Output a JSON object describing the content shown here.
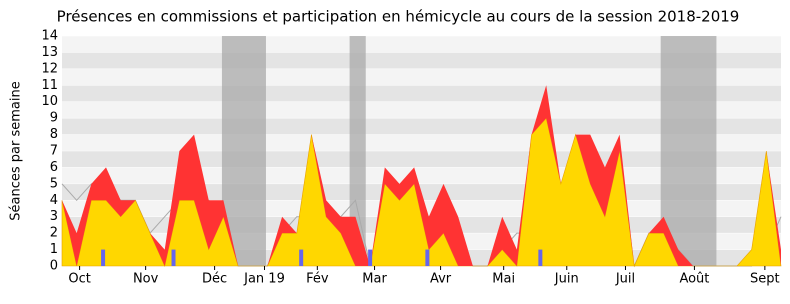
{
  "chart_data": {
    "type": "stacked-area",
    "title": "Présences en commissions et participation en hémicycle au cours de la session 2018-2019",
    "y_label": "Séances par semaine",
    "x": [
      0,
      1,
      2,
      3,
      4,
      5,
      6,
      7,
      8,
      9,
      10,
      11,
      12,
      13,
      14,
      15,
      16,
      17,
      18,
      19,
      20,
      21,
      22,
      23,
      24,
      25,
      26,
      27,
      28,
      29,
      30,
      31,
      32,
      33,
      34,
      35,
      36,
      37,
      38,
      39,
      40,
      41,
      42,
      43,
      44,
      45,
      46,
      47,
      48,
      49
    ],
    "xlim": [
      0,
      49
    ],
    "xticks": [
      {
        "value": 1.2,
        "label": "Oct"
      },
      {
        "value": 5.7,
        "label": "Nov"
      },
      {
        "value": 10.4,
        "label": "Déc"
      },
      {
        "value": 13.8,
        "label": "Jan 19"
      },
      {
        "value": 17.4,
        "label": "Fév"
      },
      {
        "value": 21.3,
        "label": "Mar"
      },
      {
        "value": 25.8,
        "label": "Avr"
      },
      {
        "value": 30.1,
        "label": "Mai"
      },
      {
        "value": 34.4,
        "label": "Juin"
      },
      {
        "value": 38.4,
        "label": "Juil"
      },
      {
        "value": 43.1,
        "label": "Août"
      },
      {
        "value": 47.9,
        "label": "Sept"
      }
    ],
    "ylim": [
      0,
      14
    ],
    "yticks": [
      0,
      1,
      2,
      3,
      4,
      5,
      6,
      7,
      8,
      9,
      10,
      11,
      12,
      13,
      14
    ],
    "grid": true,
    "shaded_ranges": [
      [
        10.9,
        13.9
      ],
      [
        19.6,
        20.7
      ],
      [
        40.8,
        44.6
      ]
    ],
    "shade_color": "#aaaaaa",
    "series": [
      {
        "color": "#ffd700",
        "values": [
          4,
          0,
          4,
          4,
          3,
          4,
          2,
          0,
          4,
          4,
          1,
          3,
          0,
          0,
          0,
          2,
          2,
          8,
          3,
          2,
          0,
          0,
          5,
          4,
          5,
          1,
          2,
          0,
          0,
          0,
          1,
          0,
          8,
          9,
          5,
          8,
          5,
          3,
          7,
          0,
          2,
          2,
          0,
          0,
          0,
          0,
          0,
          1,
          7,
          0
        ]
      },
      {
        "color": "#ff3333",
        "values": [
          0,
          2,
          1,
          2,
          1,
          0,
          0,
          1,
          3,
          4,
          3,
          1,
          0,
          0,
          0,
          1,
          0,
          0,
          1,
          1,
          3,
          0,
          1,
          1,
          1,
          2,
          3,
          3,
          0,
          0,
          2,
          1,
          0,
          2,
          0,
          0,
          3,
          3,
          1,
          0,
          0,
          1,
          1,
          0,
          0,
          0,
          0,
          0,
          0,
          1
        ]
      }
    ],
    "median": {
      "color": "#aaaaaa",
      "values": [
        5,
        4,
        5,
        5,
        4,
        4,
        2,
        3,
        4,
        4,
        4,
        3,
        0,
        0,
        0,
        2,
        3,
        3,
        3,
        3,
        4,
        0,
        4,
        4,
        4,
        3,
        3,
        1,
        0,
        0,
        1,
        2,
        2,
        3,
        3,
        3,
        3,
        3,
        3,
        0,
        2,
        2,
        1,
        0,
        0,
        0,
        0,
        0,
        1,
        3
      ]
    },
    "bars": {
      "color": "#6666ee",
      "x": [
        2.8,
        7.6,
        16.3,
        21,
        24.9,
        32.6
      ],
      "values": [
        1,
        1,
        1,
        1,
        1,
        1
      ]
    }
  }
}
